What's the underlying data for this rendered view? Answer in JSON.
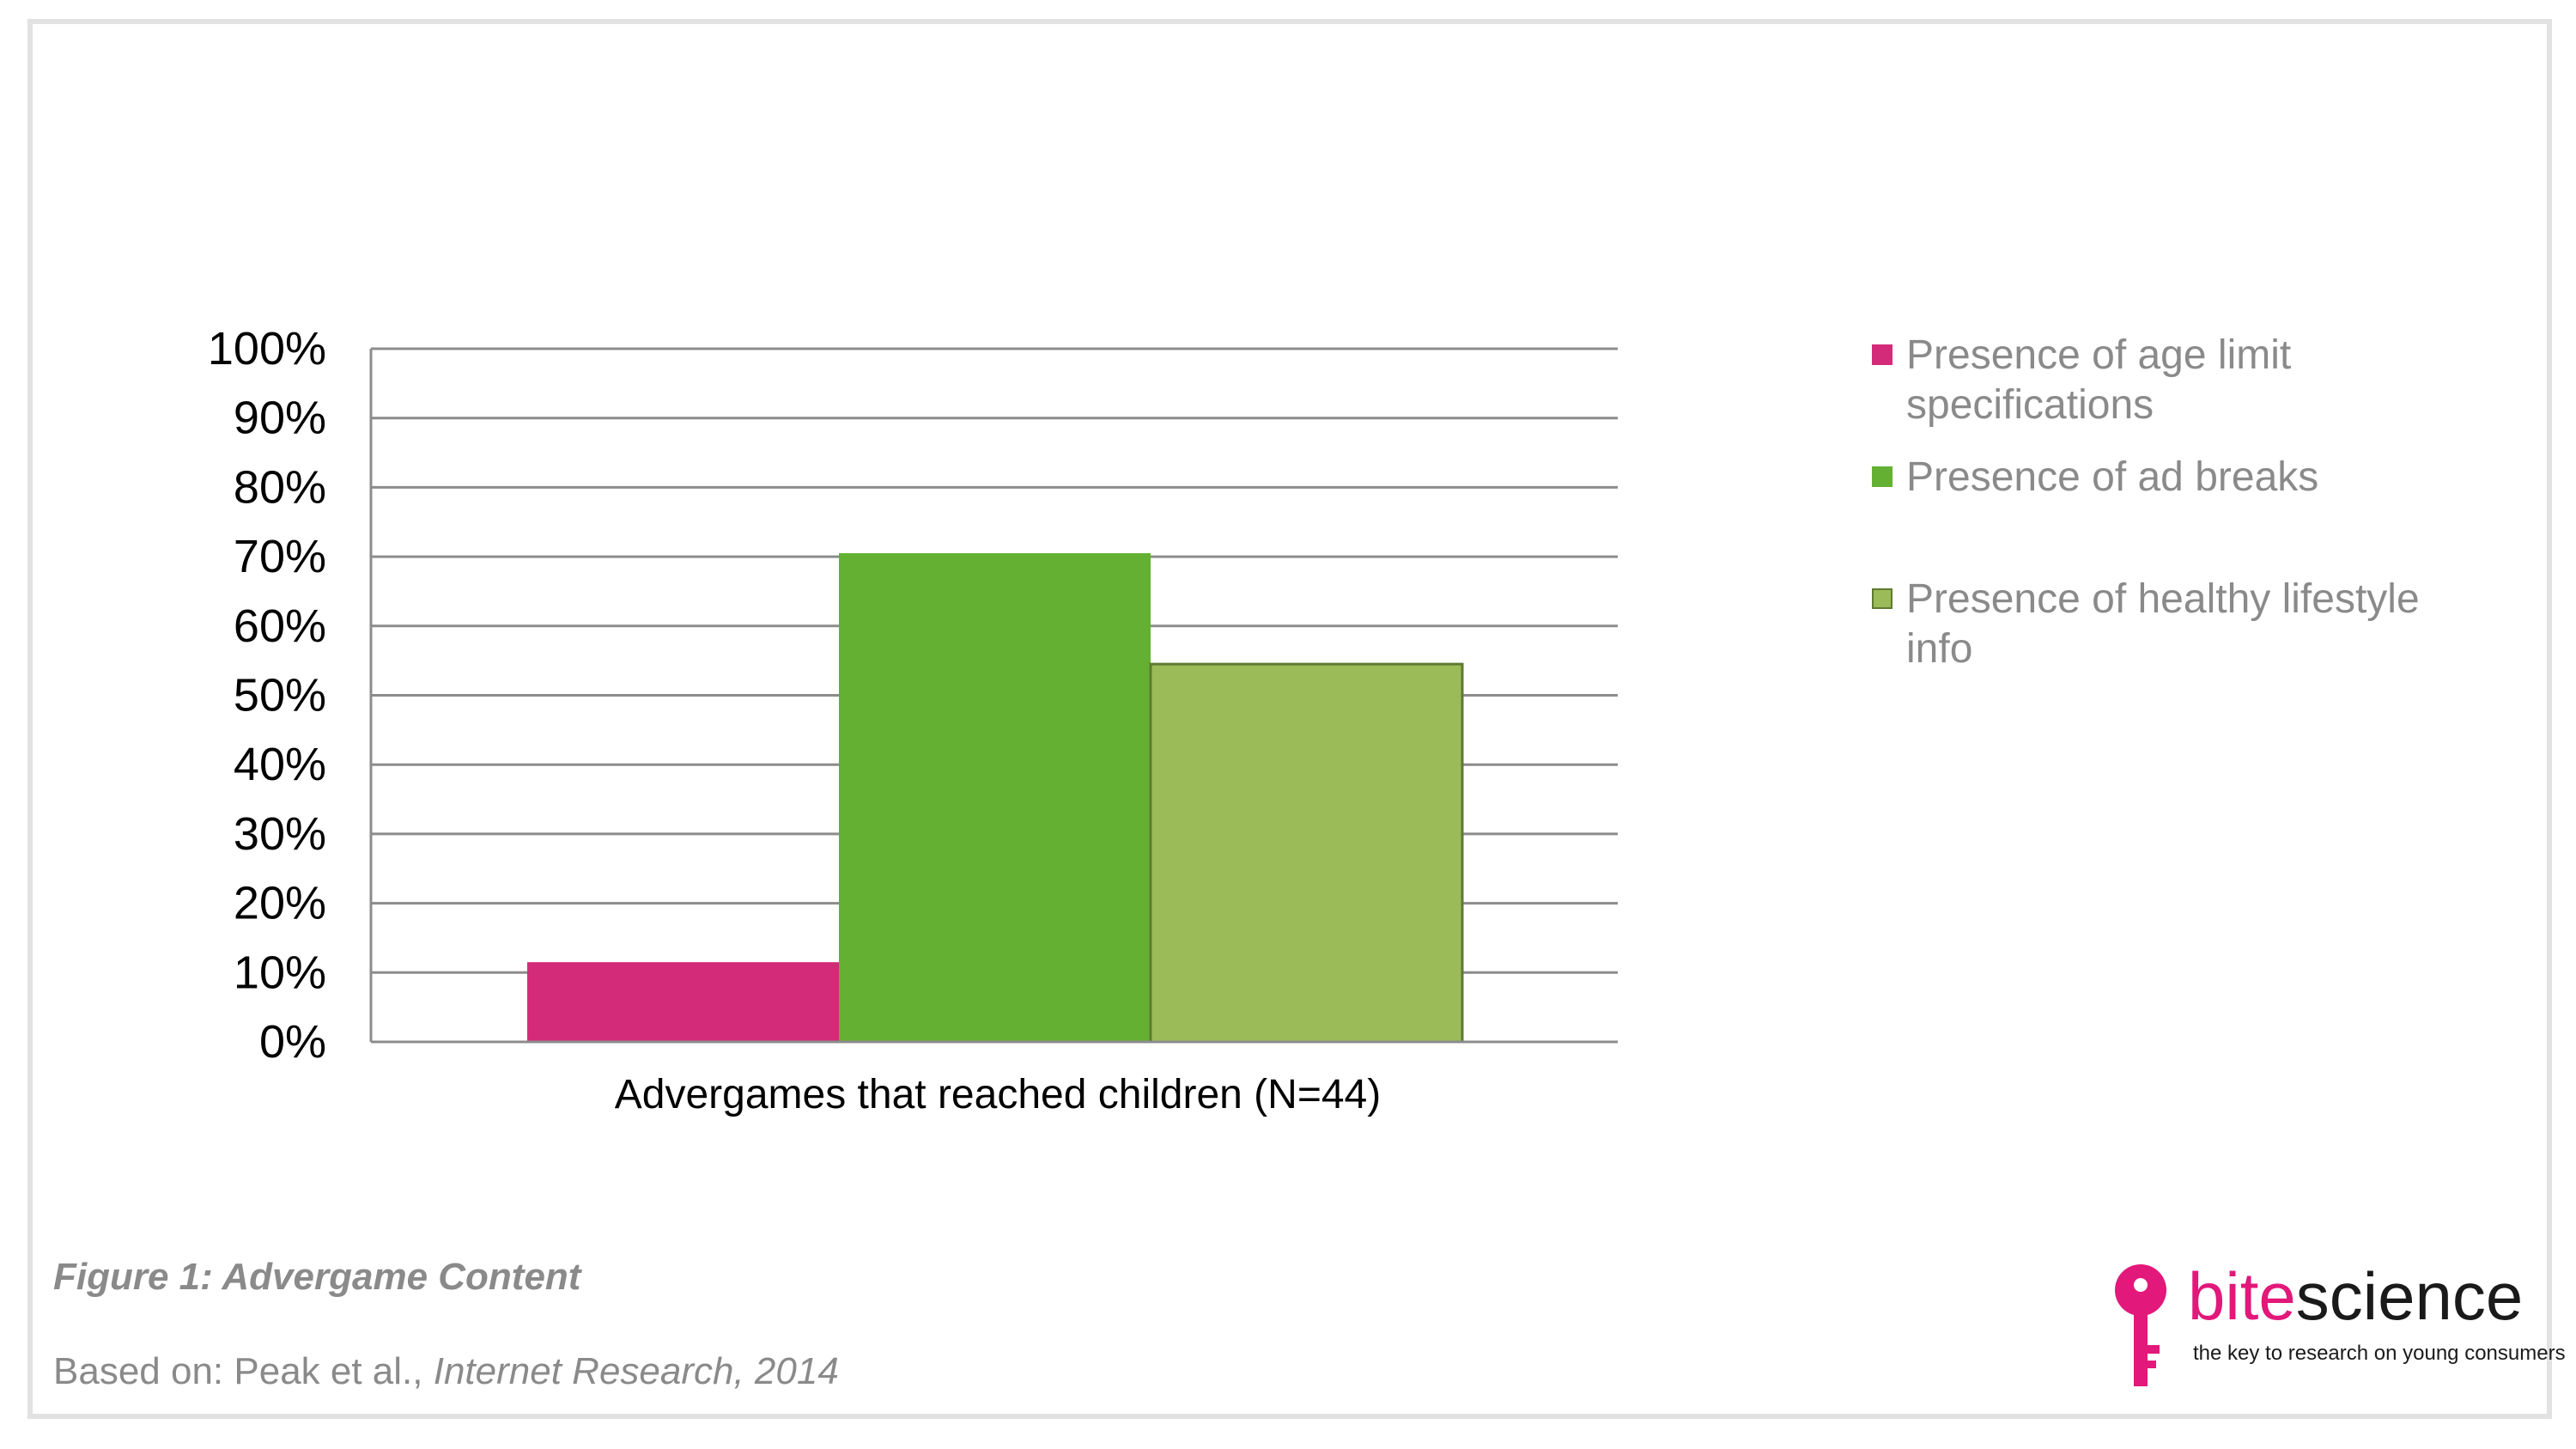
{
  "chart_data": {
    "type": "bar",
    "categories": [
      "Advergames that reached children (N=44)"
    ],
    "series": [
      {
        "name": "Presence of age limit specifications",
        "values": [
          11.5
        ],
        "color": "#d42a7a"
      },
      {
        "name": "Presence of ad breaks",
        "values": [
          70.5
        ],
        "color": "#63b032"
      },
      {
        "name": "Presence of healthy lifestyle info",
        "values": [
          54.5
        ],
        "color": "#9bbb59"
      }
    ],
    "ylim": [
      0,
      100
    ],
    "yticks": [
      "0%",
      "10%",
      "20%",
      "30%",
      "40%",
      "50%",
      "60%",
      "70%",
      "80%",
      "90%",
      "100%"
    ],
    "grid": true,
    "legend_position": "right"
  },
  "legend": {
    "items": [
      {
        "label": "Presence of age limit specifications",
        "color": "#d42a7a"
      },
      {
        "label": "Presence of ad breaks",
        "color": "#63b032"
      },
      {
        "label": "Presence of healthy lifestyle info",
        "color": "#9bbb59"
      }
    ]
  },
  "caption": "Figure 1: Advergame Content",
  "source": {
    "prefix": "Based on: Peak et al., ",
    "publication": "Internet Research, 2014"
  },
  "logo": {
    "word_part1": "bite",
    "word_part2": "science",
    "tagline": "the key to research on young consumers",
    "icon": "key-icon"
  }
}
